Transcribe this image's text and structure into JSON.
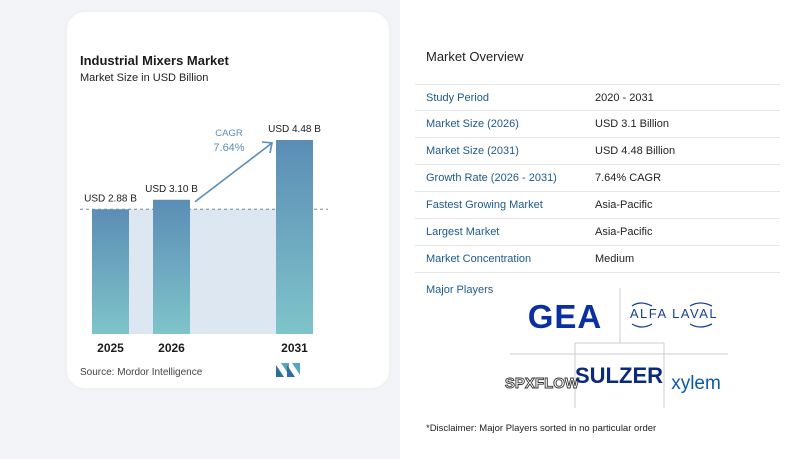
{
  "chart": {
    "title": "Industrial Mixers Market",
    "subtitle": "Market Size in USD Billion",
    "source": "Source:  Mordor Intelligence",
    "cagr_label": "CAGR",
    "cagr_value": "7.64%"
  },
  "chart_data": {
    "type": "bar",
    "categories": [
      "2025",
      "2026",
      "2031"
    ],
    "values": [
      2.88,
      3.1,
      4.48
    ],
    "data_labels": [
      "USD 2.88 B",
      "USD 3.10 B",
      "USD 4.48 B"
    ],
    "title": "Industrial Mixers Market",
    "subtitle": "Market Size in USD Billion",
    "xlabel": "",
    "ylabel": "",
    "ylim": [
      0,
      4.48
    ],
    "bar_color": "#5b8db5",
    "bar_color_bottom": "#7fc4ca",
    "band_color": "#dce7f1"
  },
  "overview": {
    "title": "Market Overview",
    "rows": [
      {
        "label": "Study Period",
        "value": "2020 - 2031"
      },
      {
        "label": "Market Size (2026)",
        "value": "USD 3.1 Billion"
      },
      {
        "label": "Market Size (2031)",
        "value": "USD 4.48 Billion"
      },
      {
        "label": "Growth Rate (2026 - 2031)",
        "value": "7.64% CAGR"
      },
      {
        "label": "Fastest Growing Market",
        "value": "Asia-Pacific"
      },
      {
        "label": "Largest Market",
        "value": "Asia-Pacific"
      },
      {
        "label": "Market Concentration",
        "value": "Medium"
      }
    ],
    "players_title": "Major Players",
    "players": [
      "GEA",
      "ALFA LAVAL",
      "SPXFLOW",
      "SULZER",
      "xylem"
    ],
    "disclaimer": "*Disclaimer: Major Players sorted in no particular order"
  },
  "colors": {
    "accent": "#1e5a8c",
    "gea_blue": "#0a2fa0",
    "xylem_blue": "#0b5aa8"
  }
}
